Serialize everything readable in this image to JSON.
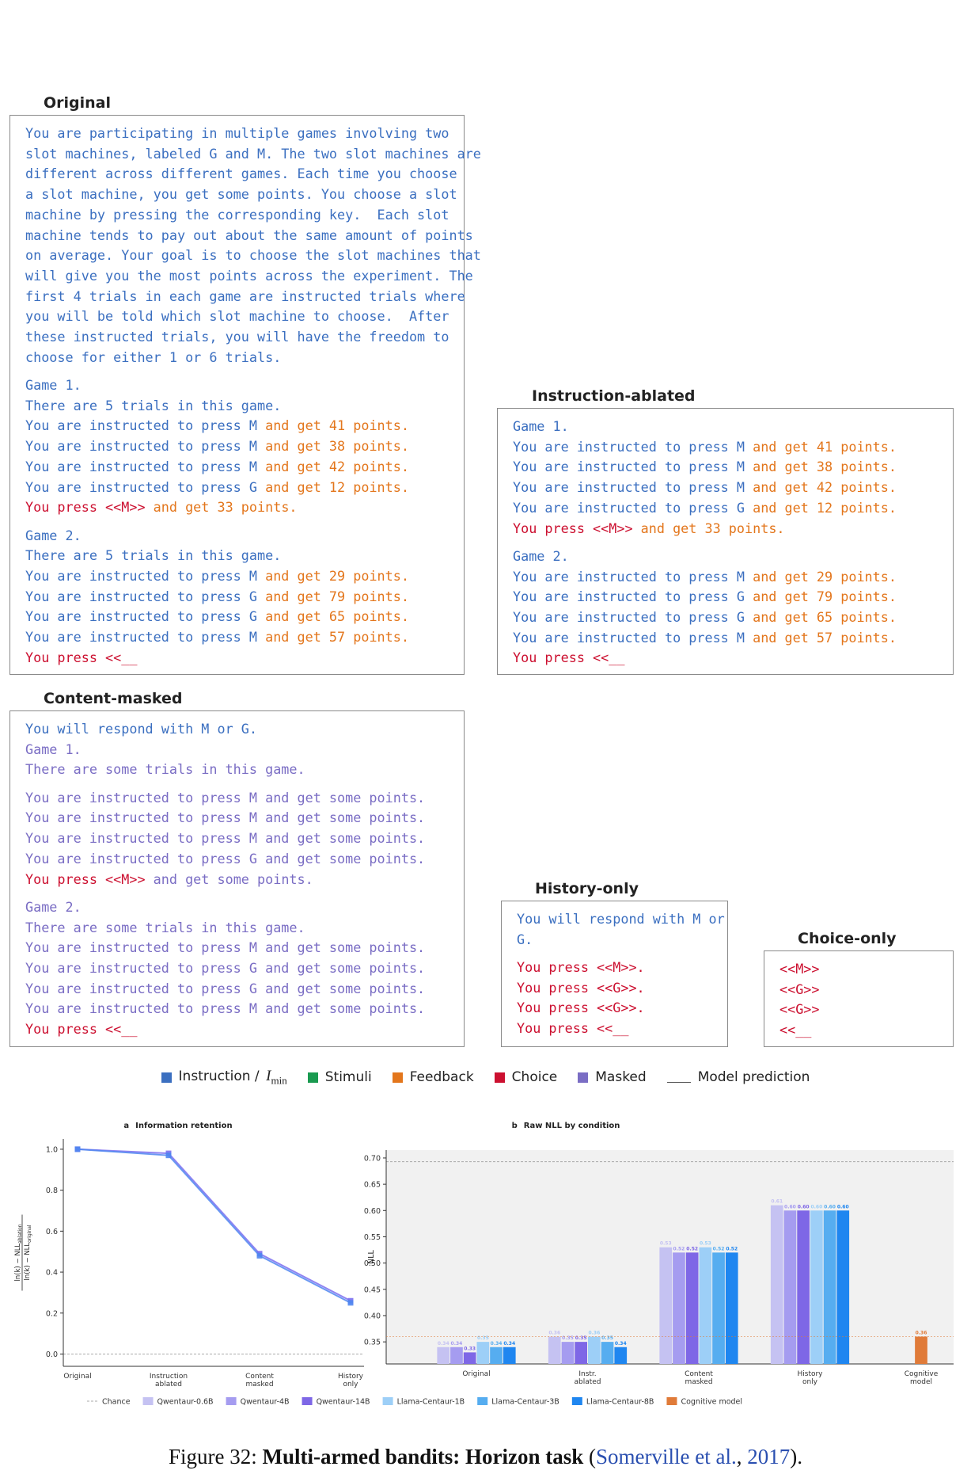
{
  "panels": [
    {
      "title": "Original",
      "paragraphs": [
        [
          [
            {
              "text": "You are participating in multiple games involving two",
              "color": "#3b6fc0"
            }
          ],
          [
            {
              "text": "slot machines, labeled G and M. The two slot machines are",
              "color": "#3b6fc0"
            }
          ],
          [
            {
              "text": "different across different games. Each time you choose",
              "color": "#3b6fc0"
            }
          ],
          [
            {
              "text": "a slot machine, you get some points. You choose a slot",
              "color": "#3b6fc0"
            }
          ],
          [
            {
              "text": "machine by pressing the corresponding key.  Each slot",
              "color": "#3b6fc0"
            }
          ],
          [
            {
              "text": "machine tends to pay out about the same amount of points",
              "color": "#3b6fc0"
            }
          ],
          [
            {
              "text": "on average. Your goal is to choose the slot machines that",
              "color": "#3b6fc0"
            }
          ],
          [
            {
              "text": "will give you the most points across the experiment. The",
              "color": "#3b6fc0"
            }
          ],
          [
            {
              "text": "first 4 trials in each game are instructed trials where",
              "color": "#3b6fc0"
            }
          ],
          [
            {
              "text": "you will be told which slot machine to choose.  After",
              "color": "#3b6fc0"
            }
          ],
          [
            {
              "text": "these instructed trials, you will have the freedom to",
              "color": "#3b6fc0"
            }
          ],
          [
            {
              "text": "choose for either 1 or 6 trials.",
              "color": "#3b6fc0"
            }
          ]
        ],
        [
          [
            {
              "text": "Game 1.",
              "color": "#3b6fc0"
            }
          ],
          [
            {
              "text": "There are 5 trials in this game.",
              "color": "#3b6fc0"
            }
          ],
          [
            {
              "text": "You are instructed to press M",
              "color": "#3b6fc0"
            },
            {
              "text": " and get 41 points.",
              "color": "#e3761c"
            }
          ],
          [
            {
              "text": "You are instructed to press M",
              "color": "#3b6fc0"
            },
            {
              "text": " and get 38 points.",
              "color": "#e3761c"
            }
          ],
          [
            {
              "text": "You are instructed to press M",
              "color": "#3b6fc0"
            },
            {
              "text": " and get 42 points.",
              "color": "#e3761c"
            }
          ],
          [
            {
              "text": "You are instructed to press G",
              "color": "#3b6fc0"
            },
            {
              "text": " and get 12 points.",
              "color": "#e3761c"
            }
          ],
          [
            {
              "text": "You press <<M>>",
              "color": "#cc1030"
            },
            {
              "text": " and get 33 points.",
              "color": "#e3761c"
            }
          ]
        ],
        [
          [
            {
              "text": "Game 2.",
              "color": "#3b6fc0"
            }
          ],
          [
            {
              "text": "There are 5 trials in this game.",
              "color": "#3b6fc0"
            }
          ],
          [
            {
              "text": "You are instructed to press M",
              "color": "#3b6fc0"
            },
            {
              "text": " and get 29 points.",
              "color": "#e3761c"
            }
          ],
          [
            {
              "text": "You are instructed to press G",
              "color": "#3b6fc0"
            },
            {
              "text": " and get 79 points.",
              "color": "#e3761c"
            }
          ],
          [
            {
              "text": "You are instructed to press G",
              "color": "#3b6fc0"
            },
            {
              "text": " and get 65 points.",
              "color": "#e3761c"
            }
          ],
          [
            {
              "text": "You are instructed to press M",
              "color": "#3b6fc0"
            },
            {
              "text": " and get 57 points.",
              "color": "#e3761c"
            }
          ],
          [
            {
              "text": "You press <<__",
              "color": "#cc1030"
            }
          ]
        ]
      ]
    },
    {
      "title": "Instruction-ablated",
      "paragraphs": [
        [
          [
            {
              "text": "Game 1.",
              "color": "#3b6fc0"
            }
          ],
          [
            {
              "text": "You are instructed to press M",
              "color": "#3b6fc0"
            },
            {
              "text": " and get 41 points.",
              "color": "#e3761c"
            }
          ],
          [
            {
              "text": "You are instructed to press M",
              "color": "#3b6fc0"
            },
            {
              "text": " and get 38 points.",
              "color": "#e3761c"
            }
          ],
          [
            {
              "text": "You are instructed to press M",
              "color": "#3b6fc0"
            },
            {
              "text": " and get 42 points.",
              "color": "#e3761c"
            }
          ],
          [
            {
              "text": "You are instructed to press G",
              "color": "#3b6fc0"
            },
            {
              "text": " and get 12 points.",
              "color": "#e3761c"
            }
          ],
          [
            {
              "text": "You press <<M>>",
              "color": "#cc1030"
            },
            {
              "text": " and get 33 points.",
              "color": "#e3761c"
            }
          ]
        ],
        [
          [
            {
              "text": "Game 2.",
              "color": "#3b6fc0"
            }
          ],
          [
            {
              "text": "You are instructed to press M",
              "color": "#3b6fc0"
            },
            {
              "text": " and get 29 points.",
              "color": "#e3761c"
            }
          ],
          [
            {
              "text": "You are instructed to press G",
              "color": "#3b6fc0"
            },
            {
              "text": " and get 79 points.",
              "color": "#e3761c"
            }
          ],
          [
            {
              "text": "You are instructed to press G",
              "color": "#3b6fc0"
            },
            {
              "text": " and get 65 points.",
              "color": "#e3761c"
            }
          ],
          [
            {
              "text": "You are instructed to press M",
              "color": "#3b6fc0"
            },
            {
              "text": " and get 57 points.",
              "color": "#e3761c"
            }
          ],
          [
            {
              "text": "You press <<__",
              "color": "#cc1030"
            }
          ]
        ]
      ]
    },
    {
      "title": "Content-masked",
      "paragraphs": [
        [
          [
            {
              "text": "You will respond with M or G.",
              "color": "#3b6fc0"
            }
          ],
          [
            {
              "text": "Game 1.",
              "color": "#7a6dc4"
            }
          ],
          [
            {
              "text": "There are some trials in this game.",
              "color": "#7a6dc4"
            }
          ]
        ],
        [
          [
            {
              "text": "You are instructed to press M and get some points.",
              "color": "#7a6dc4"
            }
          ],
          [
            {
              "text": "You are instructed to press M and get some points.",
              "color": "#7a6dc4"
            }
          ],
          [
            {
              "text": "You are instructed to press M and get some points.",
              "color": "#7a6dc4"
            }
          ],
          [
            {
              "text": "You are instructed to press G and get some points.",
              "color": "#7a6dc4"
            }
          ],
          [
            {
              "text": "You press <<M>>",
              "color": "#cc1030"
            },
            {
              "text": " and get some points.",
              "color": "#7a6dc4"
            }
          ]
        ],
        [
          [
            {
              "text": "Game 2.",
              "color": "#7a6dc4"
            }
          ],
          [
            {
              "text": "There are some trials in this game.",
              "color": "#7a6dc4"
            }
          ],
          [
            {
              "text": "You are instructed to press M and get some points.",
              "color": "#7a6dc4"
            }
          ],
          [
            {
              "text": "You are instructed to press G and get some points.",
              "color": "#7a6dc4"
            }
          ],
          [
            {
              "text": "You are instructed to press G and get some points.",
              "color": "#7a6dc4"
            }
          ],
          [
            {
              "text": "You are instructed to press M and get some points.",
              "color": "#7a6dc4"
            }
          ],
          [
            {
              "text": "You press <<__",
              "color": "#cc1030"
            }
          ]
        ]
      ]
    },
    {
      "title": "History-only",
      "paragraphs": [
        [
          [
            {
              "text": "You will respond with M or",
              "color": "#3b6fc0"
            }
          ],
          [
            {
              "text": "G.",
              "color": "#3b6fc0"
            }
          ]
        ],
        [
          [
            {
              "text": "You press <<M>>.",
              "color": "#cc1030"
            }
          ],
          [
            {
              "text": "You press <<G>>.",
              "color": "#cc1030"
            }
          ],
          [
            {
              "text": "You press <<G>>.",
              "color": "#cc1030"
            }
          ],
          [
            {
              "text": "You press <<__",
              "color": "#cc1030"
            }
          ]
        ]
      ]
    },
    {
      "title": "Choice-only",
      "paragraphs": [
        [
          [
            {
              "text": "<<M>>",
              "color": "#cc1030"
            }
          ],
          [
            {
              "text": "<<G>>",
              "color": "#cc1030"
            }
          ],
          [
            {
              "text": "<<G>>",
              "color": "#cc1030"
            }
          ],
          [
            {
              "text": "<<__",
              "color": "#cc1030"
            }
          ]
        ]
      ]
    }
  ],
  "legend": [
    {
      "label": "Instruction /",
      "math": "I",
      "sub": "min",
      "color": "#3b6fc0",
      "marker": "square"
    },
    {
      "label": "Stimuli",
      "color": "#1a9a50",
      "marker": "square"
    },
    {
      "label": "Feedback",
      "color": "#e3761c",
      "marker": "square"
    },
    {
      "label": "Choice",
      "color": "#cc1030",
      "marker": "square"
    },
    {
      "label": "Masked",
      "color": "#7a6dc4",
      "marker": "square"
    },
    {
      "label": "Model prediction",
      "color": "#555555",
      "marker": "line"
    }
  ],
  "chart_data": [
    {
      "type": "line",
      "panel_label": "a",
      "title": "Information retention",
      "y_label": {
        "numerator": "ln(k) − NLL",
        "numerator_sub": "ablation",
        "denominator": "ln(k) − NLL",
        "denominator_sub": "original"
      },
      "categories": [
        [
          "Original"
        ],
        [
          "Instruction",
          "ablated"
        ],
        [
          "Content",
          "masked"
        ],
        [
          "History",
          "only"
        ]
      ],
      "series": [
        {
          "color": "#7b6ff0",
          "values": [
            1.0,
            0.98,
            0.49,
            0.26
          ]
        },
        {
          "color": "#4f86f0",
          "values": [
            1.0,
            0.97,
            0.48,
            0.25
          ]
        }
      ],
      "ylim": [
        -0.06,
        1.05
      ],
      "yticks": [
        {
          "value": 0,
          "label": "0.0"
        },
        0.2,
        0.4,
        0.6,
        0.8,
        {
          "value": 1,
          "label": "1.0"
        }
      ],
      "chance": {
        "value": 0
      }
    },
    {
      "type": "bar",
      "panel_label": "b",
      "title": "Raw NLL by condition",
      "y_label": "NLL",
      "categories": [
        [
          "Original"
        ],
        [
          "Instr.",
          "ablated"
        ],
        [
          "Content",
          "masked"
        ],
        [
          "History",
          "only"
        ],
        [
          "Cognitive",
          "model"
        ]
      ],
      "series": [
        {
          "name": "Qwentaur-0.6B",
          "color": "#c5c2f2",
          "values": [
            0.34,
            0.36,
            0.53,
            0.61,
            null
          ],
          "value_labels": [
            "0.34",
            "0.36",
            "0.53",
            "0.61",
            null
          ]
        },
        {
          "name": "Qwentaur-4B",
          "color": "#a59cf0",
          "values": [
            0.34,
            0.35,
            0.52,
            0.6,
            null
          ],
          "value_labels": [
            "0.34",
            "0.35",
            "0.52",
            "0.60",
            null
          ]
        },
        {
          "name": "Qwentaur-14B",
          "color": "#7e67e6",
          "values": [
            0.33,
            0.35,
            0.52,
            0.6,
            null
          ],
          "value_labels": [
            "0.33",
            "0.35",
            "0.52",
            "0.60",
            null
          ]
        },
        {
          "name": "Llama-Centaur-1B",
          "color": "#9dcff7",
          "values": [
            0.35,
            0.36,
            0.53,
            0.6,
            null
          ],
          "value_labels": [
            "0.35",
            "0.36",
            "0.53",
            "0.60",
            null
          ]
        },
        {
          "name": "Llama-Centaur-3B",
          "color": "#56adf0",
          "values": [
            0.34,
            0.35,
            0.52,
            0.6,
            null
          ],
          "value_labels": [
            "0.34",
            "0.35",
            "0.52",
            "0.60",
            null
          ]
        },
        {
          "name": "Llama-Centaur-8B",
          "color": "#1f86f0",
          "values": [
            0.34,
            0.34,
            0.52,
            0.6,
            null
          ],
          "value_labels": [
            "0.34",
            "0.34",
            "0.52",
            "0.60",
            null
          ]
        },
        {
          "name": "Cognitive model",
          "color": "#e07b39",
          "values": [
            null,
            null,
            null,
            null,
            0.36
          ]
        }
      ],
      "ylim": [
        0.308,
        0.715
      ],
      "yticks": [
        0.35,
        {
          "value": 0.4,
          "label": "0.40"
        },
        0.45,
        {
          "value": 0.5,
          "label": "0.50"
        },
        0.55,
        {
          "value": 0.6,
          "label": "0.60"
        },
        0.65,
        {
          "value": 0.7,
          "label": "0.70"
        }
      ],
      "chance": {
        "label": "Chance",
        "value": 0.693
      },
      "background": "#f1f1f1"
    }
  ],
  "caption": [
    {
      "text": "Figure 32: "
    },
    {
      "text": "Multi-armed bandits: Horizon task",
      "bold": true
    },
    {
      "text": " ("
    },
    {
      "text": "Somerville et al.",
      "color": "#2a4fb0"
    },
    {
      "text": ", "
    },
    {
      "text": "2017",
      "color": "#2a4fb0"
    },
    {
      "text": ")."
    }
  ]
}
